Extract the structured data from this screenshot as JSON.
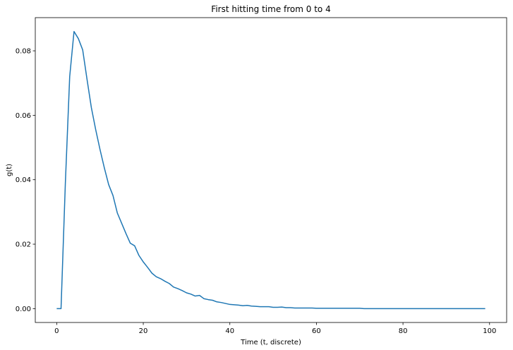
{
  "chart_data": {
    "type": "line",
    "title": "First hitting time from 0 to 4",
    "xlabel": "Time (t, discrete)",
    "ylabel": "g(t)",
    "xlim": [
      -4.95,
      103.95
    ],
    "ylim": [
      -0.0043,
      0.0903
    ],
    "xticks": [
      0,
      20,
      40,
      60,
      80,
      100
    ],
    "yticks": [
      0.0,
      0.02,
      0.04,
      0.06,
      0.08
    ],
    "ytick_labels": [
      "0.00",
      "0.02",
      "0.04",
      "0.06",
      "0.08"
    ],
    "grid": false,
    "series": [
      {
        "color": "#1f77b4",
        "x": [
          0,
          1,
          2,
          3,
          4,
          5,
          6,
          7,
          8,
          9,
          10,
          11,
          12,
          13,
          14,
          15,
          16,
          17,
          18,
          19,
          20,
          21,
          22,
          23,
          24,
          25,
          26,
          27,
          28,
          29,
          30,
          31,
          32,
          33,
          34,
          35,
          36,
          37,
          38,
          39,
          40,
          41,
          42,
          43,
          44,
          45,
          46,
          47,
          48,
          49,
          50,
          51,
          52,
          53,
          54,
          55,
          56,
          57,
          58,
          59,
          60,
          61,
          62,
          63,
          64,
          65,
          66,
          67,
          68,
          69,
          70,
          71,
          72,
          73,
          74,
          75,
          76,
          77,
          78,
          79,
          80,
          81,
          82,
          83,
          84,
          85,
          86,
          87,
          88,
          89,
          90,
          91,
          92,
          93,
          94,
          95,
          96,
          97,
          98,
          99
        ],
        "y": [
          0,
          0,
          0.039,
          0.072,
          0.086,
          0.0838,
          0.0803,
          0.0712,
          0.0624,
          0.0556,
          0.0494,
          0.0437,
          0.0385,
          0.0351,
          0.0297,
          0.0265,
          0.0233,
          0.0203,
          0.0195,
          0.0165,
          0.0145,
          0.0128,
          0.011,
          0.0099,
          0.0093,
          0.0085,
          0.0078,
          0.0067,
          0.0062,
          0.0056,
          0.0049,
          0.0045,
          0.0039,
          0.0041,
          0.0031,
          0.0028,
          0.0026,
          0.0021,
          0.0019,
          0.0016,
          0.0013,
          0.0012,
          0.0011,
          0.0009,
          0.001,
          0.0008,
          0.0007,
          0.0006,
          0.0006,
          0.0006,
          0.0004,
          0.0004,
          0.0005,
          0.0003,
          0.0003,
          0.0002,
          0.0002,
          0.0002,
          0.0002,
          0.0002,
          0.0001,
          0.0001,
          0.0001,
          0.0001,
          0.0001,
          0.0001,
          0.0001,
          0.0001,
          0.0001,
          0.0001,
          0.0001,
          0,
          0,
          0,
          0,
          0,
          0,
          0,
          0,
          0,
          0,
          0,
          0,
          0,
          0,
          0,
          0,
          0,
          0,
          0,
          0,
          0,
          0,
          0,
          0,
          0,
          0,
          0,
          0,
          0
        ]
      }
    ]
  }
}
